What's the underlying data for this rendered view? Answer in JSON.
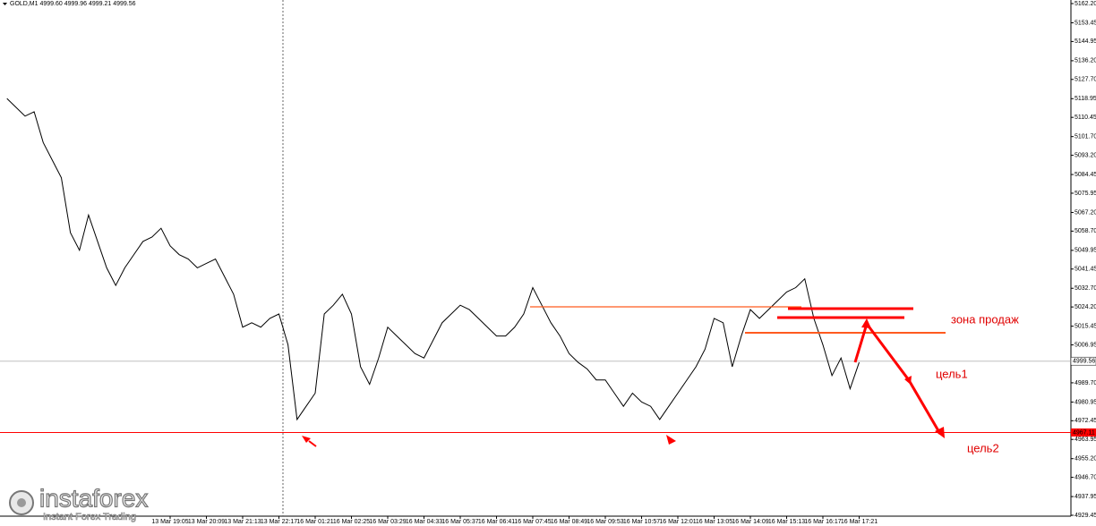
{
  "header": "GOLD,M1  4999.60 4999.96 4999.21 4999.56",
  "logo": {
    "name": "instaforex",
    "tagline": "Instant Forex Trading"
  },
  "annotations": {
    "sell_zone": "зона продаж",
    "target1": "цель1",
    "target2": "цель2"
  },
  "chart_data": {
    "type": "line",
    "categories": [
      null,
      null,
      null,
      null,
      null,
      null,
      null,
      null,
      null,
      null,
      null,
      null,
      null,
      null,
      null,
      null,
      null,
      null,
      "13 Mar 19:05",
      null,
      null,
      null,
      "13 Mar 20:09",
      null,
      null,
      null,
      "13 Mar 21:13",
      null,
      null,
      null,
      "13 Mar 22:17",
      null,
      null,
      null,
      "16 Mar 01:21",
      null,
      null,
      null,
      "16 Mar 02:25",
      null,
      null,
      null,
      "16 Mar 03:29",
      null,
      null,
      null,
      "16 Mar 04:33",
      null,
      null,
      null,
      "16 Mar 05:37",
      null,
      null,
      null,
      "16 Mar 06:41",
      null,
      null,
      null,
      "16 Mar 07:45",
      null,
      null,
      null,
      "16 Mar 08:49",
      null,
      null,
      null,
      "16 Mar 09:53",
      null,
      null,
      null,
      "16 Mar 10:57",
      null,
      null,
      null,
      "16 Mar 12:01",
      null,
      null,
      null,
      "16 Mar 13:05",
      null,
      null,
      null,
      "16 Mar 14:09",
      null,
      null,
      null,
      "16 Mar 15:13",
      null,
      null,
      null,
      "16 Mar 16:17",
      null,
      null,
      null,
      "16 Mar 17:21"
    ],
    "series": [
      {
        "name": "GOLD,M1",
        "color": "#000000",
        "values": [
          5119,
          5115,
          5111,
          5113,
          5099,
          5091,
          5083,
          5058,
          5050,
          5066,
          5054,
          5042,
          5034,
          5042,
          5048,
          5054,
          5056,
          5060,
          5052,
          5048,
          5046,
          5042,
          5044,
          5046,
          5038,
          5030,
          5015,
          5017,
          5015,
          5019,
          5021,
          5007,
          4973,
          4979,
          4985,
          5021,
          5025,
          5030,
          5021,
          4997,
          4989,
          5001,
          5015,
          5011,
          5007,
          5003,
          5001,
          5009,
          5017,
          5021,
          5025,
          5023,
          5019,
          5015,
          5011,
          5011,
          5015,
          5021,
          5033,
          5025,
          5017,
          5011,
          5003,
          4999,
          4996,
          4991,
          4991,
          4985,
          4979,
          4985,
          4981,
          4979,
          4973,
          4979,
          4985,
          4991,
          4997,
          5005,
          5019,
          5017,
          4997,
          5011,
          5023,
          5019,
          5023,
          5027,
          5031,
          5033,
          5037,
          5019,
          5007,
          4993,
          5001,
          4987,
          4999
        ]
      }
    ],
    "ylim": [
      4929.04,
      5163.83
    ],
    "yticks": [
      {
        "value": 5162.2,
        "label": "5162.20"
      },
      5153.45,
      5144.95,
      {
        "value": 5136.2,
        "label": "5136.20"
      },
      {
        "value": 5127.7,
        "label": "5127.70"
      },
      5118.95,
      5110.45,
      {
        "value": 5101.7,
        "label": "5101.70"
      },
      {
        "value": 5093.2,
        "label": "5093.20"
      },
      5084.45,
      5075.95,
      {
        "value": 5067.2,
        "label": "5067.20"
      },
      {
        "value": 5058.7,
        "label": "5058.70"
      },
      5049.95,
      5041.45,
      {
        "value": 5032.7,
        "label": "5032.70"
      },
      {
        "value": 5024.2,
        "label": "5024.20"
      },
      5015.45,
      5006.95,
      {
        "value": 4989.7,
        "label": "4989.70"
      },
      4980.95,
      4972.45,
      4963.95,
      {
        "value": 4955.2,
        "label": "4955.20"
      },
      {
        "value": 4946.7,
        "label": "4946.70"
      },
      4937.95,
      4929.45
    ],
    "levels": [
      {
        "value": 4999.56,
        "color": "#c0c0c0"
      },
      {
        "value": 4967.11,
        "color": "#ff0000"
      }
    ]
  }
}
